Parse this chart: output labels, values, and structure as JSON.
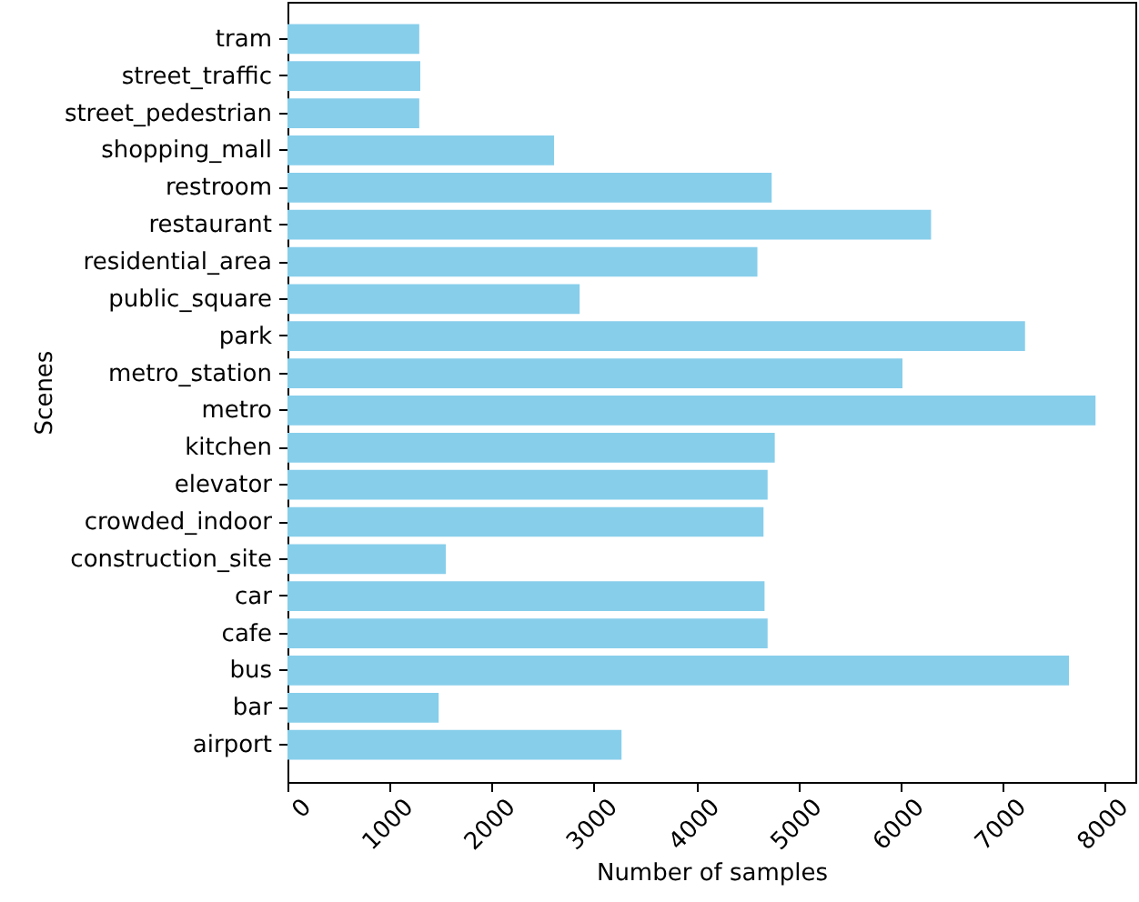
{
  "chart_data": {
    "type": "bar",
    "orientation": "horizontal",
    "xlabel": "Number of samples",
    "ylabel": "Scenes",
    "categories": [
      "tram",
      "street_traffic",
      "street_pedestrian",
      "shopping_mall",
      "restroom",
      "restaurant",
      "residential_area",
      "public_square",
      "park",
      "metro_station",
      "metro",
      "kitchen",
      "elevator",
      "crowded_indoor",
      "construction_site",
      "car",
      "cafe",
      "bus",
      "bar",
      "airport"
    ],
    "values": [
      1290,
      1300,
      1290,
      2610,
      4740,
      6300,
      4600,
      2860,
      7220,
      6020,
      7910,
      4770,
      4700,
      4660,
      1550,
      4670,
      4700,
      7650,
      1480,
      3270
    ],
    "color": "#87ceeb",
    "xlim": [
      0,
      8300
    ],
    "xticks": [
      0,
      1000,
      2000,
      3000,
      4000,
      5000,
      6000,
      7000,
      8000
    ]
  }
}
